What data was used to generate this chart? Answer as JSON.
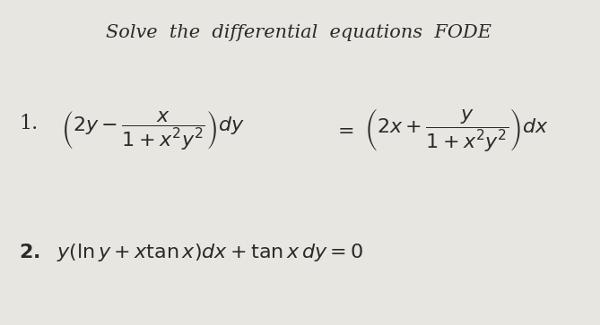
{
  "background_color": "#e8e6e0",
  "title_line": "Solve  the  differential  equations  FODE",
  "eq1_label": "1.",
  "eq1_lhs": "$\\left(2y - \\dfrac{x}{1+x^2y^2}\\right)dy$",
  "eq1_rhs": "$= \\left(2x + \\dfrac{y}{1+x^2y^2}\\right)dx$",
  "eq2_label": "2.",
  "eq2_text": "$y\\left(\\ln y + x\\tan x\\right)dx + \\tan x\\,dy = 0$",
  "title_fontsize": 15,
  "eq_fontsize": 16,
  "text_color": "#2a2a2a"
}
